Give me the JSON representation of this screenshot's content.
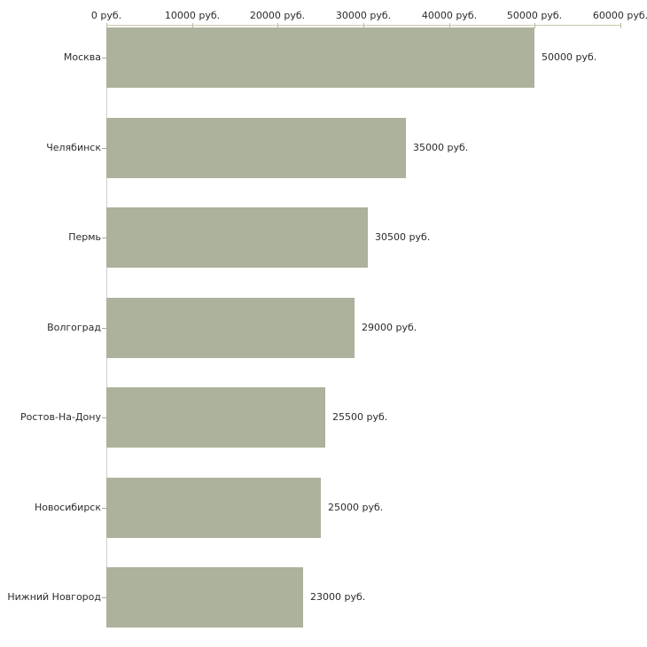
{
  "chart_data": {
    "type": "bar",
    "orientation": "horizontal",
    "title": "",
    "categories": [
      "Москва",
      "Челябинск",
      "Пермь",
      "Волгоград",
      "Ростов-На-Дону",
      "Новосибирск",
      "Нижний Новгород"
    ],
    "values": [
      50000,
      35000,
      30500,
      29000,
      25500,
      25000,
      23000
    ],
    "bar_value_labels": [
      "50000 руб.",
      "35000 руб.",
      "30500 руб.",
      "29000 руб.",
      "25500 руб.",
      "25000 руб.",
      "23000 руб."
    ],
    "unit": "руб.",
    "x_axis": {
      "position": "top",
      "min": 0,
      "max": 60000,
      "ticks": [
        0,
        10000,
        20000,
        30000,
        40000,
        50000,
        60000
      ],
      "tick_labels": [
        "0 руб.",
        "10000 руб.",
        "20000 руб.",
        "30000 руб.",
        "40000 руб.",
        "50000 руб.",
        "60000 руб."
      ]
    },
    "grid": false,
    "legend": null,
    "colors": {
      "bar_fill": "#acb29b",
      "axis_line": "#c9c9ae",
      "axis_tick": "#b9b99c",
      "value_axis_line": "#cfcfcf",
      "category_tick": "#a6a6a6",
      "text": "#2b2b2b",
      "background": "#ffffff"
    }
  }
}
